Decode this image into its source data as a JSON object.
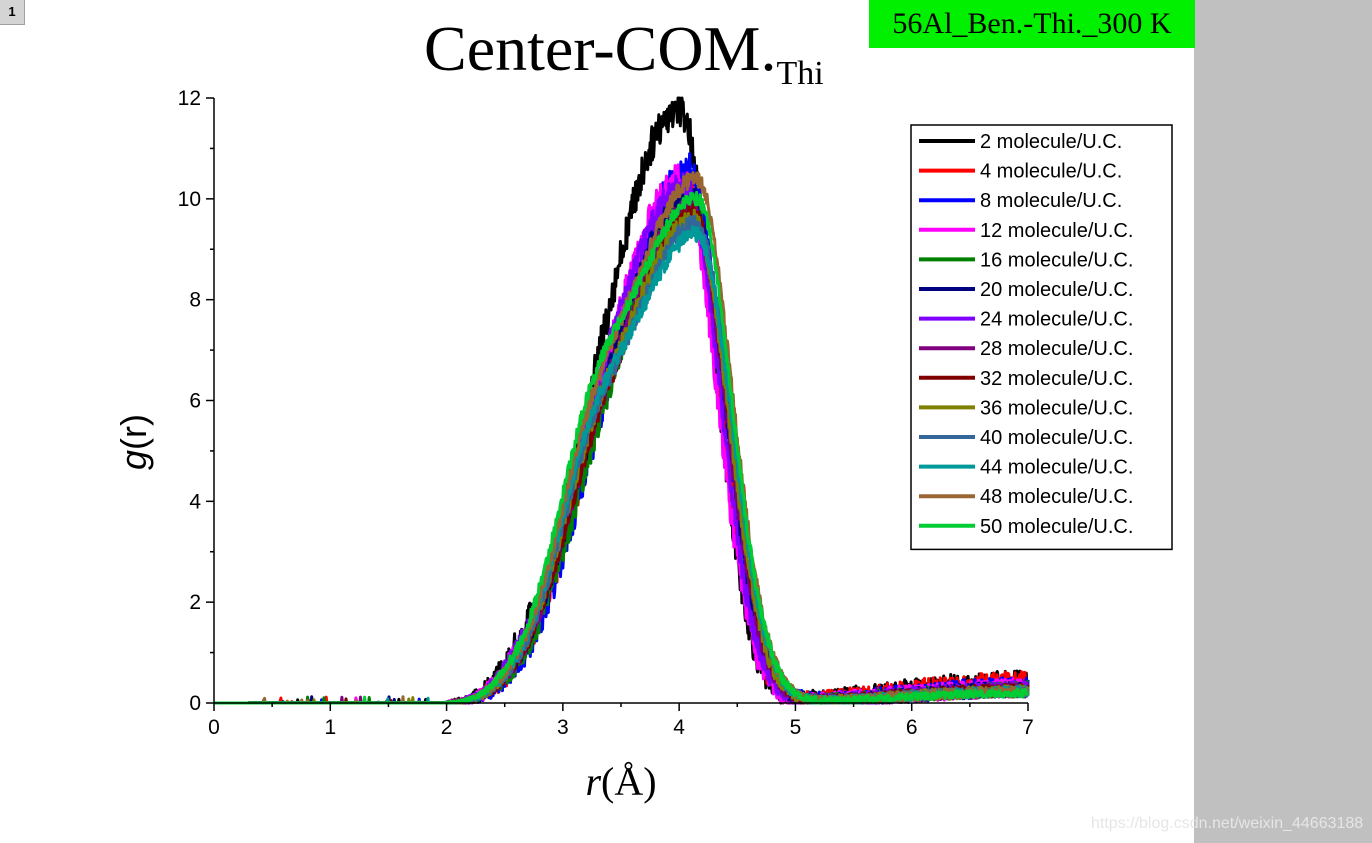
{
  "page": {
    "number": "1"
  },
  "badge": {
    "text": "56Al_Ben.-Thi._300 K"
  },
  "watermark": {
    "text": "https://blog.csdn.net/weixin_44663188"
  },
  "chart_data": {
    "type": "line",
    "title": "Center-COM.",
    "title_subscript": "Thi",
    "xlabel_italic": "r",
    "xlabel_rest": "(Å)",
    "ylabel_italic": "g",
    "ylabel_rest": "(r)",
    "xlim": [
      0,
      7
    ],
    "ylim": [
      0,
      12
    ],
    "xticks": [
      0,
      1,
      2,
      3,
      4,
      5,
      6,
      7
    ],
    "yticks": [
      0,
      2,
      4,
      6,
      8,
      10,
      12
    ],
    "legend_position": "top-right",
    "series": [
      {
        "name": "2 molecule/U.C.",
        "color": "#000000",
        "peak_x": 4.0,
        "peak_y": 11.8,
        "shoulder": 0.2,
        "tail": 0.45,
        "noise": 0.5
      },
      {
        "name": "4 molecule/U.C.",
        "color": "#ff0000",
        "peak_x": 4.05,
        "peak_y": 10.3,
        "shoulder": 0.25,
        "tail": 0.45,
        "noise": 0.45
      },
      {
        "name": "8 molecule/U.C.",
        "color": "#0000ff",
        "peak_x": 4.08,
        "peak_y": 10.6,
        "shoulder": 0.25,
        "tail": 0.35,
        "noise": 0.42
      },
      {
        "name": "12 molecule/U.C.",
        "color": "#ff00ff",
        "peak_x": 4.02,
        "peak_y": 10.4,
        "shoulder": 0.3,
        "tail": 0.33,
        "noise": 0.4
      },
      {
        "name": "16 molecule/U.C.",
        "color": "#008000",
        "peak_x": 4.1,
        "peak_y": 10.0,
        "shoulder": 0.4,
        "tail": 0.3,
        "noise": 0.34
      },
      {
        "name": "20 molecule/U.C.",
        "color": "#000080",
        "peak_x": 4.08,
        "peak_y": 10.2,
        "shoulder": 0.45,
        "tail": 0.3,
        "noise": 0.33
      },
      {
        "name": "24 molecule/U.C.",
        "color": "#8000ff",
        "peak_x": 4.05,
        "peak_y": 10.3,
        "shoulder": 0.5,
        "tail": 0.3,
        "noise": 0.32
      },
      {
        "name": "28 molecule/U.C.",
        "color": "#800080",
        "peak_x": 4.1,
        "peak_y": 9.8,
        "shoulder": 0.55,
        "tail": 0.28,
        "noise": 0.3
      },
      {
        "name": "32 molecule/U.C.",
        "color": "#800000",
        "peak_x": 4.12,
        "peak_y": 9.7,
        "shoulder": 0.6,
        "tail": 0.28,
        "noise": 0.28
      },
      {
        "name": "36 molecule/U.C.",
        "color": "#808000",
        "peak_x": 4.12,
        "peak_y": 9.6,
        "shoulder": 0.7,
        "tail": 0.26,
        "noise": 0.26
      },
      {
        "name": "40 molecule/U.C.",
        "color": "#336699",
        "peak_x": 4.15,
        "peak_y": 9.5,
        "shoulder": 0.8,
        "tail": 0.26,
        "noise": 0.24
      },
      {
        "name": "44 molecule/U.C.",
        "color": "#009999",
        "peak_x": 4.15,
        "peak_y": 9.3,
        "shoulder": 0.9,
        "tail": 0.25,
        "noise": 0.22
      },
      {
        "name": "48 molecule/U.C.",
        "color": "#996633",
        "peak_x": 4.15,
        "peak_y": 10.4,
        "shoulder": 0.85,
        "tail": 0.25,
        "noise": 0.22
      },
      {
        "name": "50 molecule/U.C.",
        "color": "#00cc33",
        "peak_x": 4.15,
        "peak_y": 10.0,
        "shoulder": 1.0,
        "tail": 0.22,
        "noise": 0.18
      }
    ]
  }
}
